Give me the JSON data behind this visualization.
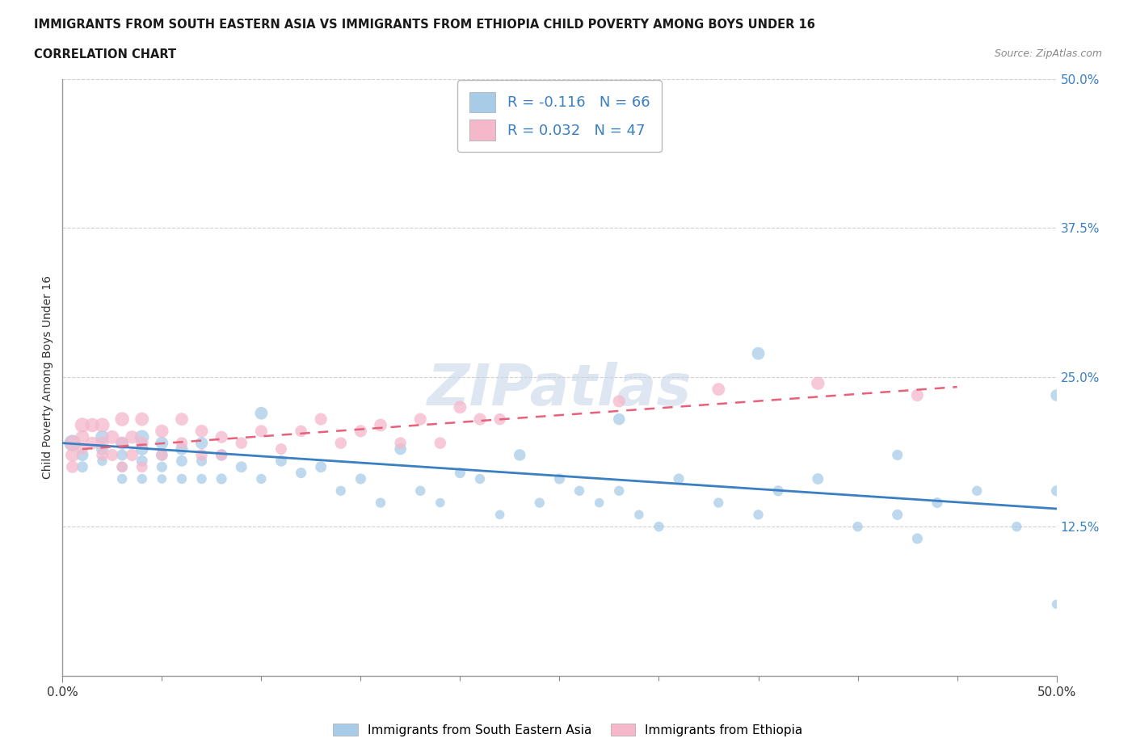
{
  "title_line1": "IMMIGRANTS FROM SOUTH EASTERN ASIA VS IMMIGRANTS FROM ETHIOPIA CHILD POVERTY AMONG BOYS UNDER 16",
  "title_line2": "CORRELATION CHART",
  "source_text": "Source: ZipAtlas.com",
  "ylabel": "Child Poverty Among Boys Under 16",
  "xlim": [
    0.0,
    0.5
  ],
  "ylim": [
    0.0,
    0.5
  ],
  "ytick_vals": [
    0.125,
    0.25,
    0.375,
    0.5
  ],
  "xtick_vals": [
    0.0,
    0.5
  ],
  "blue_R": -0.116,
  "blue_N": 66,
  "pink_R": 0.032,
  "pink_N": 47,
  "blue_color": "#a8cce8",
  "pink_color": "#f5b8cb",
  "blue_line_color": "#3a7fc1",
  "pink_line_color": "#e8607a",
  "legend_label_blue": "Immigrants from South Eastern Asia",
  "legend_label_pink": "Immigrants from Ethiopia",
  "blue_scatter_x": [
    0.005,
    0.01,
    0.01,
    0.02,
    0.02,
    0.02,
    0.03,
    0.03,
    0.03,
    0.03,
    0.04,
    0.04,
    0.04,
    0.04,
    0.05,
    0.05,
    0.05,
    0.05,
    0.06,
    0.06,
    0.06,
    0.07,
    0.07,
    0.07,
    0.08,
    0.08,
    0.09,
    0.1,
    0.1,
    0.11,
    0.12,
    0.13,
    0.14,
    0.15,
    0.16,
    0.17,
    0.18,
    0.19,
    0.2,
    0.21,
    0.22,
    0.23,
    0.24,
    0.25,
    0.26,
    0.27,
    0.28,
    0.29,
    0.3,
    0.31,
    0.33,
    0.35,
    0.36,
    0.38,
    0.4,
    0.42,
    0.44,
    0.46,
    0.48,
    0.5,
    0.28,
    0.35,
    0.43,
    0.5,
    0.5,
    0.42
  ],
  "blue_scatter_y": [
    0.195,
    0.185,
    0.175,
    0.2,
    0.19,
    0.18,
    0.195,
    0.185,
    0.175,
    0.165,
    0.2,
    0.19,
    0.18,
    0.165,
    0.195,
    0.185,
    0.175,
    0.165,
    0.19,
    0.18,
    0.165,
    0.195,
    0.18,
    0.165,
    0.185,
    0.165,
    0.175,
    0.22,
    0.165,
    0.18,
    0.17,
    0.175,
    0.155,
    0.165,
    0.145,
    0.19,
    0.155,
    0.145,
    0.17,
    0.165,
    0.135,
    0.185,
    0.145,
    0.165,
    0.155,
    0.145,
    0.155,
    0.135,
    0.125,
    0.165,
    0.145,
    0.135,
    0.155,
    0.165,
    0.125,
    0.135,
    0.145,
    0.155,
    0.125,
    0.155,
    0.215,
    0.27,
    0.115,
    0.06,
    0.235,
    0.185
  ],
  "pink_scatter_x": [
    0.005,
    0.005,
    0.005,
    0.01,
    0.01,
    0.01,
    0.015,
    0.015,
    0.02,
    0.02,
    0.02,
    0.025,
    0.025,
    0.03,
    0.03,
    0.03,
    0.035,
    0.035,
    0.04,
    0.04,
    0.04,
    0.05,
    0.05,
    0.06,
    0.06,
    0.07,
    0.07,
    0.08,
    0.08,
    0.09,
    0.1,
    0.11,
    0.12,
    0.13,
    0.14,
    0.15,
    0.16,
    0.17,
    0.18,
    0.19,
    0.2,
    0.21,
    0.22,
    0.28,
    0.33,
    0.38,
    0.43
  ],
  "pink_scatter_y": [
    0.195,
    0.185,
    0.175,
    0.21,
    0.2,
    0.19,
    0.21,
    0.195,
    0.21,
    0.195,
    0.185,
    0.2,
    0.185,
    0.215,
    0.195,
    0.175,
    0.2,
    0.185,
    0.215,
    0.195,
    0.175,
    0.205,
    0.185,
    0.215,
    0.195,
    0.205,
    0.185,
    0.2,
    0.185,
    0.195,
    0.205,
    0.19,
    0.205,
    0.215,
    0.195,
    0.205,
    0.21,
    0.195,
    0.215,
    0.195,
    0.225,
    0.215,
    0.215,
    0.23,
    0.24,
    0.245,
    0.235
  ],
  "blue_bubble_sizes": [
    220,
    120,
    100,
    150,
    120,
    80,
    130,
    100,
    90,
    80,
    160,
    130,
    100,
    80,
    130,
    110,
    90,
    70,
    120,
    100,
    80,
    120,
    90,
    80,
    110,
    90,
    100,
    130,
    80,
    100,
    90,
    100,
    80,
    90,
    80,
    110,
    80,
    70,
    90,
    80,
    70,
    110,
    80,
    90,
    80,
    70,
    80,
    70,
    80,
    90,
    80,
    80,
    90,
    100,
    80,
    90,
    90,
    80,
    80,
    90,
    110,
    130,
    90,
    70,
    110,
    90
  ],
  "pink_bubble_sizes": [
    180,
    150,
    120,
    180,
    150,
    100,
    160,
    130,
    170,
    140,
    110,
    150,
    120,
    160,
    130,
    100,
    140,
    120,
    150,
    130,
    100,
    140,
    110,
    130,
    110,
    130,
    110,
    120,
    100,
    110,
    120,
    100,
    110,
    120,
    110,
    120,
    130,
    110,
    120,
    110,
    130,
    120,
    110,
    120,
    130,
    140,
    120
  ]
}
